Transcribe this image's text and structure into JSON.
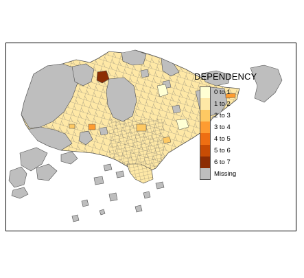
{
  "legend": {
    "title": "DEPENDENCY",
    "items": [
      {
        "label": "0 to 1",
        "color": "#ffffd4"
      },
      {
        "label": "1 to 2",
        "color": "#fee8a6"
      },
      {
        "label": "2 to 3",
        "color": "#fec963"
      },
      {
        "label": "3 to 4",
        "color": "#fe9c31"
      },
      {
        "label": "4 to 5",
        "color": "#ee6e12"
      },
      {
        "label": "5 to 6",
        "color": "#c84c04"
      },
      {
        "label": "6 to 7",
        "color": "#8c2d04"
      },
      {
        "label": "Missing",
        "color": "#bebebe"
      }
    ]
  },
  "map": {
    "missing_color": "#bebebe",
    "boundary_color": "#4d4d4d",
    "highlighted_zones": [
      {
        "class": "6 to 7"
      },
      {
        "class": "3 to 4"
      },
      {
        "class": "2 to 3"
      }
    ]
  }
}
